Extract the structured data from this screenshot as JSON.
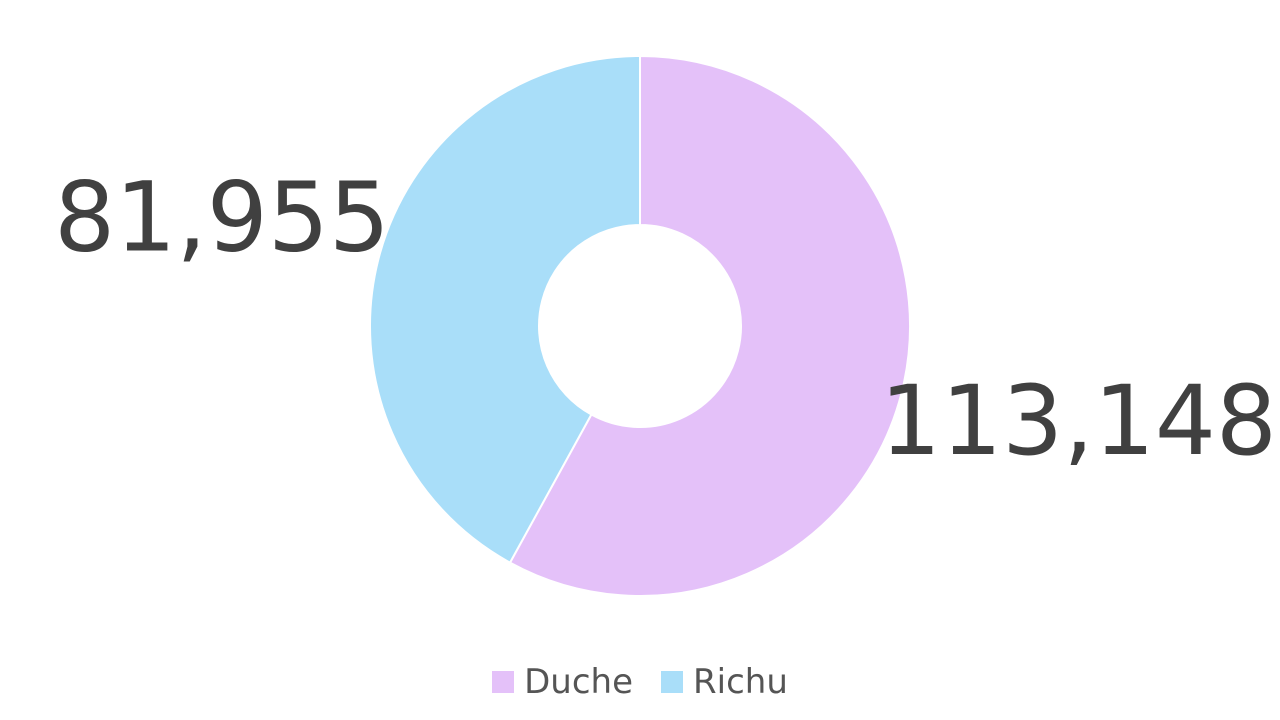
{
  "chart_data": {
    "type": "pie",
    "variant": "donut",
    "categories": [
      "Duche",
      "Richu"
    ],
    "values": [
      113148,
      81955
    ],
    "value_labels": [
      "113,148",
      "81,955"
    ],
    "colors": [
      "#e4c1f9",
      "#a9def9"
    ],
    "legend_position": "bottom",
    "title": "",
    "xlabel": "",
    "ylabel": ""
  },
  "legend": {
    "items": [
      {
        "label": "Duche",
        "color": "#e4c1f9"
      },
      {
        "label": "Richu",
        "color": "#a9def9"
      }
    ]
  }
}
